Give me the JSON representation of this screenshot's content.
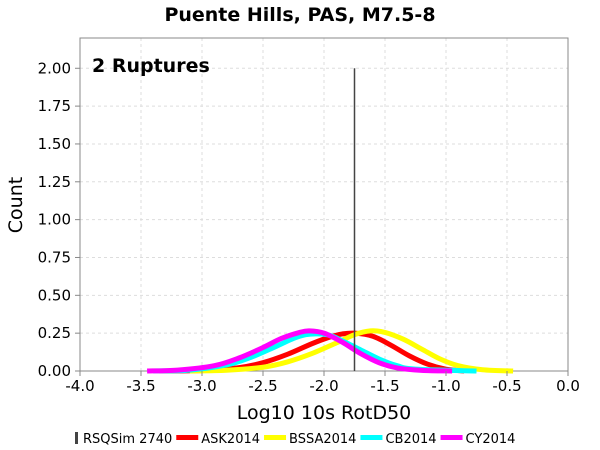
{
  "chart_data": {
    "type": "line",
    "title": "Puente Hills, PAS, M7.5-8",
    "xlabel": "Log10 10s RotD50",
    "ylabel": "Count",
    "xlim": [
      -4.0,
      0.0
    ],
    "ylim": [
      0.0,
      2.2
    ],
    "x_ticks": [
      "-4.0",
      "-3.5",
      "-3.0",
      "-2.5",
      "-2.0",
      "-1.5",
      "-1.0",
      "-0.5",
      "0.0"
    ],
    "y_ticks": [
      "0.00",
      "0.25",
      "0.50",
      "0.75",
      "1.00",
      "1.25",
      "1.50",
      "1.75",
      "2.00"
    ],
    "grid": true,
    "legend_position": "bottom",
    "annotation": "2 Ruptures",
    "reference_line": {
      "name": "RSQSim 2740",
      "x": -1.75,
      "y": [
        0.0,
        2.0
      ],
      "color": "#444444"
    },
    "series": [
      {
        "name": "ASK2014",
        "color": "#ff0000",
        "x": [
          -3.35,
          -3.0,
          -2.7,
          -2.5,
          -2.3,
          -2.1,
          -1.95,
          -1.85,
          -1.75,
          -1.6,
          -1.45,
          -1.3,
          -1.15,
          -1.0,
          -0.85
        ],
        "values": [
          0.0,
          0.003,
          0.022,
          0.055,
          0.11,
          0.18,
          0.225,
          0.245,
          0.25,
          0.23,
          0.17,
          0.1,
          0.045,
          0.012,
          0.0
        ]
      },
      {
        "name": "BSSA2014",
        "color": "#ffff00",
        "x": [
          -3.1,
          -2.8,
          -2.5,
          -2.3,
          -2.1,
          -1.9,
          -1.75,
          -1.62,
          -1.5,
          -1.35,
          -1.2,
          -1.05,
          -0.9,
          -0.7,
          -0.45
        ],
        "values": [
          0.0,
          0.005,
          0.025,
          0.06,
          0.115,
          0.185,
          0.24,
          0.265,
          0.255,
          0.21,
          0.145,
          0.08,
          0.035,
          0.008,
          0.0
        ]
      },
      {
        "name": "CB2014",
        "color": "#00ffff",
        "x": [
          -3.4,
          -3.1,
          -2.8,
          -2.6,
          -2.4,
          -2.25,
          -2.15,
          -2.05,
          -1.95,
          -1.85,
          -1.7,
          -1.55,
          -1.4,
          -1.25,
          -0.75
        ],
        "values": [
          0.0,
          0.006,
          0.04,
          0.09,
          0.16,
          0.215,
          0.24,
          0.245,
          0.235,
          0.2,
          0.14,
          0.08,
          0.035,
          0.012,
          0.0
        ]
      },
      {
        "name": "CY2014",
        "color": "#ff00ff",
        "x": [
          -3.45,
          -3.2,
          -2.9,
          -2.7,
          -2.5,
          -2.35,
          -2.2,
          -2.12,
          -2.0,
          -1.85,
          -1.7,
          -1.55,
          -1.4,
          -1.2,
          -0.95
        ],
        "values": [
          0.0,
          0.006,
          0.035,
          0.085,
          0.155,
          0.215,
          0.255,
          0.265,
          0.25,
          0.19,
          0.115,
          0.055,
          0.02,
          0.004,
          0.0
        ]
      }
    ]
  }
}
